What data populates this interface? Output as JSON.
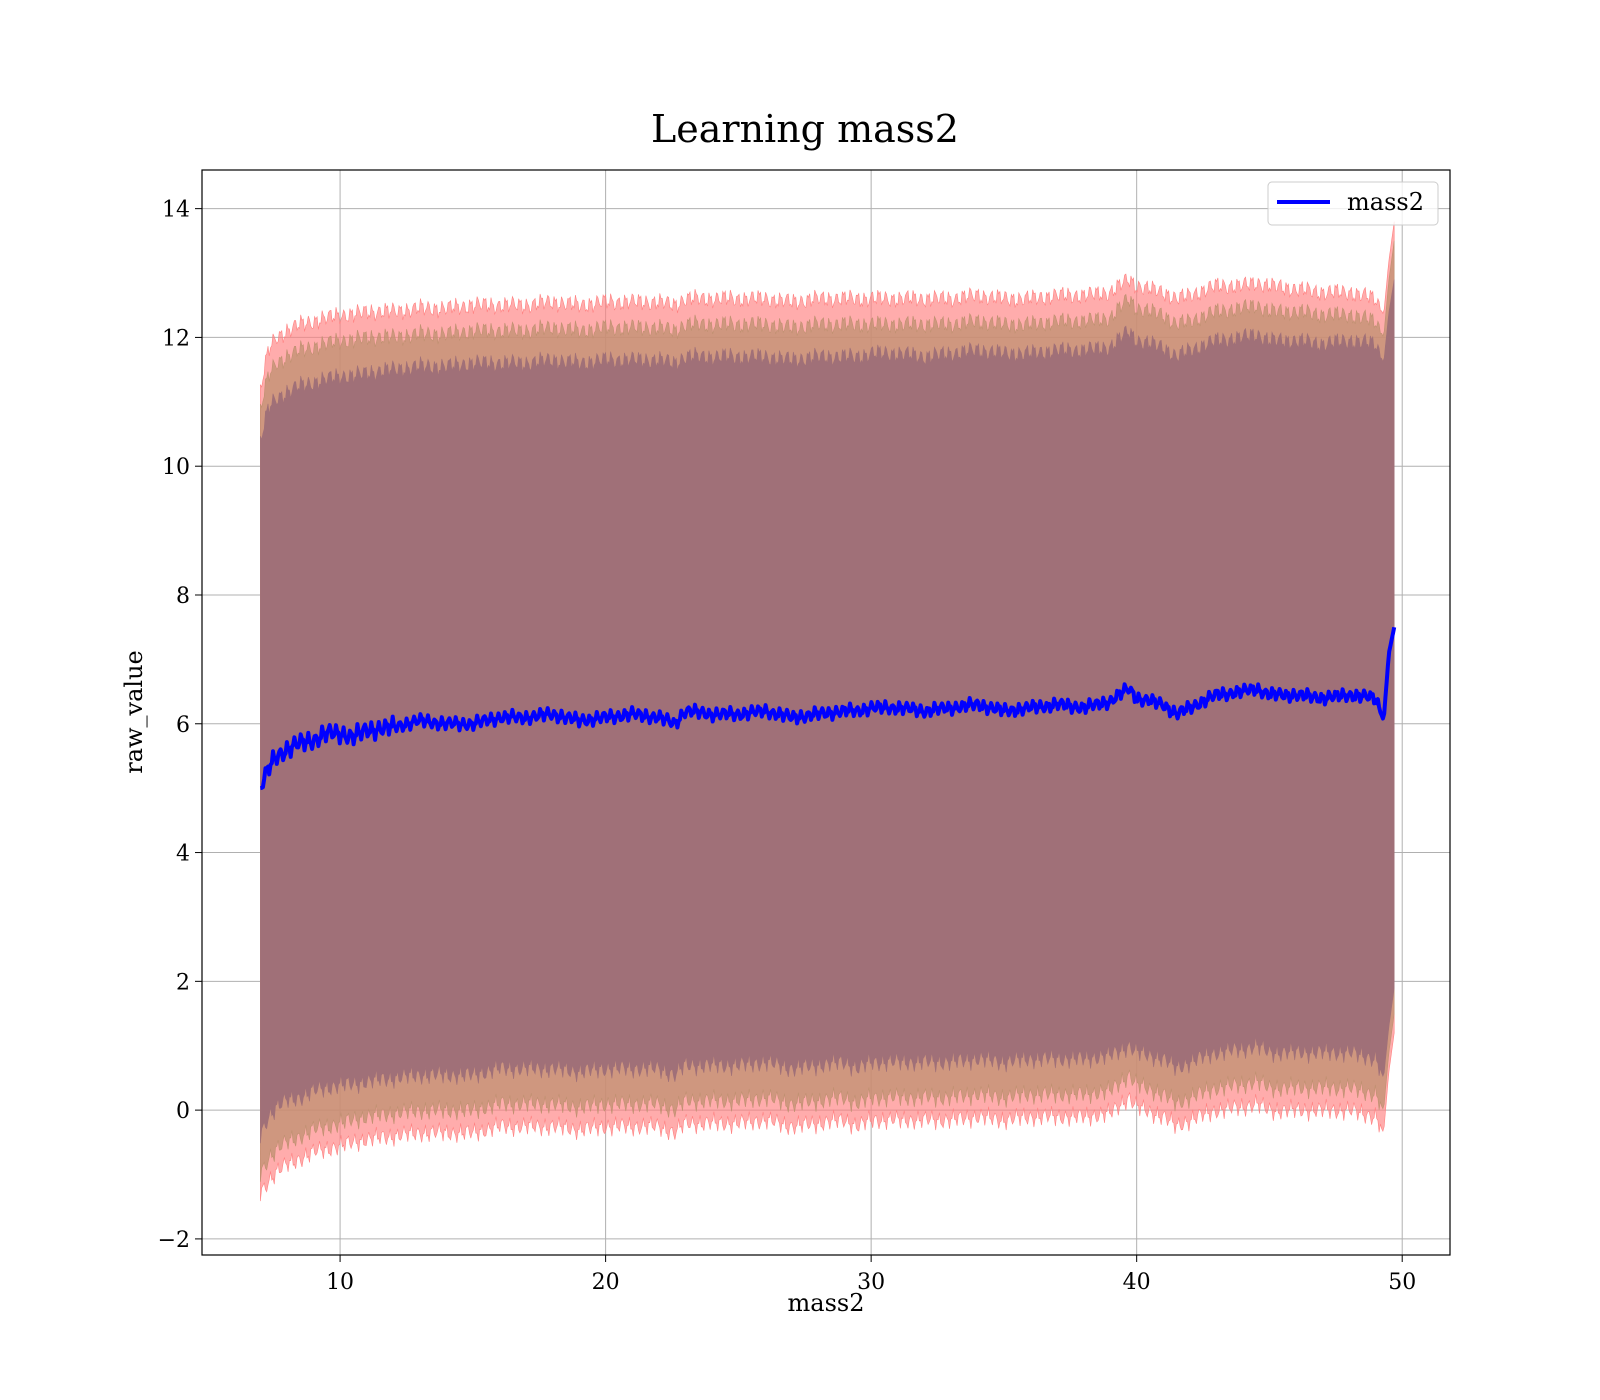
{
  "chart_data": {
    "type": "line",
    "title": "Learning mass2",
    "xlabel": "mass2",
    "ylabel": "raw_value",
    "xlim": [
      4.8,
      51.8
    ],
    "ylim": [
      -2.25,
      14.6
    ],
    "xticks": [
      10,
      20,
      30,
      40,
      50
    ],
    "yticks": [
      -2,
      0,
      2,
      4,
      6,
      8,
      10,
      12,
      14
    ],
    "xtick_labels": [
      "10",
      "20",
      "30",
      "40",
      "50"
    ],
    "ytick_labels": [
      "−2",
      "0",
      "2",
      "4",
      "6",
      "8",
      "10",
      "12",
      "14"
    ],
    "grid": true,
    "legend": {
      "position": "top-right",
      "entries": [
        "mass2"
      ]
    },
    "colors": {
      "line": "#0000ff",
      "outer_band": "#ff8080",
      "middle_band": "#bf9070",
      "inner_band": "#a07078"
    },
    "series": [
      {
        "name": "mass2",
        "x": [
          7.0,
          7.3,
          7.6,
          8.0,
          8.5,
          9.0,
          9.5,
          10.0,
          10.5,
          11.0,
          12.0,
          13.0,
          14.0,
          15.0,
          16.0,
          17.0,
          18.0,
          19.0,
          20.0,
          21.0,
          22.0,
          22.6,
          23.0,
          24.0,
          25.0,
          26.0,
          27.0,
          28.0,
          29.0,
          29.5,
          30.0,
          31.0,
          32.0,
          33.0,
          34.0,
          35.0,
          36.0,
          37.0,
          38.0,
          39.0,
          39.7,
          40.0,
          41.0,
          41.5,
          42.0,
          43.0,
          44.0,
          44.5,
          45.0,
          46.0,
          47.0,
          48.0,
          49.0,
          49.3,
          49.5,
          49.7
        ],
        "values": [
          5.0,
          5.3,
          5.5,
          5.6,
          5.7,
          5.75,
          5.85,
          5.85,
          5.8,
          5.9,
          5.95,
          6.05,
          6.0,
          6.0,
          6.1,
          6.1,
          6.15,
          6.05,
          6.1,
          6.15,
          6.1,
          6.0,
          6.2,
          6.15,
          6.15,
          6.2,
          6.1,
          6.15,
          6.2,
          6.2,
          6.25,
          6.25,
          6.2,
          6.25,
          6.3,
          6.2,
          6.25,
          6.3,
          6.25,
          6.35,
          6.55,
          6.4,
          6.3,
          6.15,
          6.25,
          6.45,
          6.5,
          6.55,
          6.45,
          6.45,
          6.4,
          6.45,
          6.4,
          6.05,
          7.1,
          7.5
        ]
      }
    ],
    "bands": [
      {
        "label": "outer",
        "upper": [
          11.2,
          11.8,
          12.0,
          12.1,
          12.2,
          12.25,
          12.3,
          12.35,
          12.35,
          12.4,
          12.4,
          12.45,
          12.45,
          12.5,
          12.5,
          12.5,
          12.55,
          12.5,
          12.55,
          12.55,
          12.55,
          12.5,
          12.6,
          12.6,
          12.6,
          12.6,
          12.55,
          12.6,
          12.6,
          12.6,
          12.6,
          12.6,
          12.6,
          12.6,
          12.65,
          12.6,
          12.6,
          12.65,
          12.65,
          12.7,
          12.9,
          12.8,
          12.7,
          12.6,
          12.65,
          12.8,
          12.8,
          12.85,
          12.8,
          12.75,
          12.7,
          12.7,
          12.6,
          12.35,
          13.2,
          13.8
        ],
        "lower": [
          -1.3,
          -1.1,
          -0.95,
          -0.85,
          -0.75,
          -0.65,
          -0.6,
          -0.55,
          -0.5,
          -0.45,
          -0.4,
          -0.35,
          -0.35,
          -0.35,
          -0.25,
          -0.25,
          -0.25,
          -0.3,
          -0.25,
          -0.25,
          -0.25,
          -0.35,
          -0.2,
          -0.2,
          -0.2,
          -0.15,
          -0.25,
          -0.2,
          -0.15,
          -0.25,
          -0.15,
          -0.15,
          -0.15,
          -0.15,
          -0.1,
          -0.15,
          -0.1,
          -0.1,
          -0.1,
          -0.05,
          0.2,
          0.05,
          -0.1,
          -0.25,
          -0.15,
          0.0,
          0.05,
          0.1,
          0.0,
          0.0,
          0.0,
          0.0,
          -0.1,
          -0.35,
          0.6,
          1.2
        ]
      },
      {
        "label": "middle",
        "upper": [
          10.9,
          11.4,
          11.6,
          11.7,
          11.8,
          11.85,
          11.9,
          11.95,
          11.95,
          12.0,
          12.0,
          12.05,
          12.05,
          12.1,
          12.1,
          12.1,
          12.15,
          12.1,
          12.15,
          12.15,
          12.15,
          12.1,
          12.2,
          12.2,
          12.2,
          12.2,
          12.15,
          12.2,
          12.2,
          12.2,
          12.2,
          12.2,
          12.2,
          12.2,
          12.25,
          12.2,
          12.2,
          12.25,
          12.25,
          12.3,
          12.6,
          12.45,
          12.35,
          12.2,
          12.25,
          12.4,
          12.45,
          12.5,
          12.4,
          12.4,
          12.35,
          12.35,
          12.25,
          12.0,
          12.9,
          13.5
        ],
        "lower": [
          -1.0,
          -0.75,
          -0.6,
          -0.5,
          -0.4,
          -0.3,
          -0.25,
          -0.2,
          -0.15,
          -0.1,
          -0.05,
          0.0,
          0.0,
          0.0,
          0.1,
          0.1,
          0.1,
          0.05,
          0.1,
          0.1,
          0.1,
          0.0,
          0.15,
          0.15,
          0.15,
          0.2,
          0.1,
          0.15,
          0.2,
          0.1,
          0.2,
          0.2,
          0.2,
          0.2,
          0.25,
          0.2,
          0.25,
          0.25,
          0.25,
          0.3,
          0.55,
          0.4,
          0.25,
          0.1,
          0.2,
          0.35,
          0.4,
          0.45,
          0.35,
          0.35,
          0.35,
          0.35,
          0.25,
          0.0,
          0.9,
          1.5
        ]
      },
      {
        "label": "inner",
        "upper": [
          10.4,
          10.9,
          11.05,
          11.15,
          11.25,
          11.3,
          11.35,
          11.4,
          11.4,
          11.45,
          11.5,
          11.55,
          11.55,
          11.6,
          11.6,
          11.6,
          11.65,
          11.6,
          11.65,
          11.65,
          11.65,
          11.6,
          11.7,
          11.7,
          11.7,
          11.7,
          11.65,
          11.7,
          11.7,
          11.7,
          11.75,
          11.75,
          11.7,
          11.75,
          11.8,
          11.75,
          11.75,
          11.8,
          11.8,
          11.85,
          12.1,
          11.95,
          11.85,
          11.7,
          11.8,
          11.95,
          12.0,
          12.05,
          11.95,
          11.95,
          11.9,
          11.95,
          11.9,
          11.6,
          12.4,
          12.9
        ],
        "lower": [
          -0.4,
          -0.1,
          0.05,
          0.15,
          0.2,
          0.3,
          0.35,
          0.4,
          0.4,
          0.45,
          0.5,
          0.55,
          0.55,
          0.55,
          0.65,
          0.65,
          0.65,
          0.6,
          0.65,
          0.65,
          0.65,
          0.55,
          0.7,
          0.7,
          0.7,
          0.75,
          0.65,
          0.7,
          0.75,
          0.65,
          0.75,
          0.75,
          0.75,
          0.75,
          0.8,
          0.75,
          0.8,
          0.8,
          0.8,
          0.85,
          1.0,
          0.9,
          0.8,
          0.65,
          0.75,
          0.9,
          0.95,
          1.0,
          0.9,
          0.9,
          0.9,
          0.9,
          0.8,
          0.5,
          1.3,
          1.9
        ]
      }
    ]
  }
}
